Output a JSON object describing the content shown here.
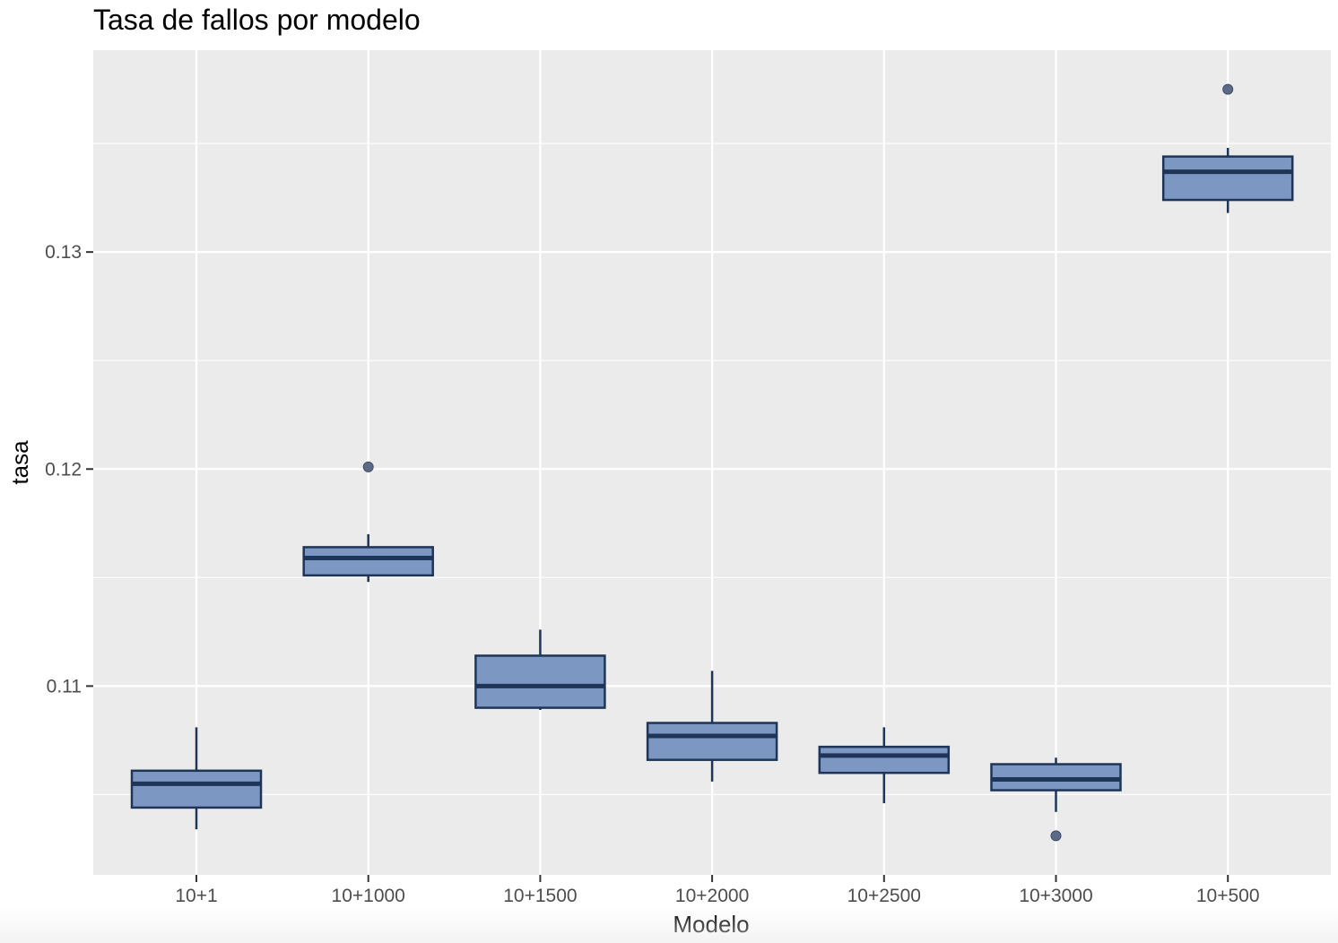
{
  "chart_data": {
    "type": "boxplot",
    "title": "Tasa de fallos por modelo",
    "xlabel": "Modelo",
    "ylabel": "tasa",
    "ylim": [
      0.1013,
      0.1393
    ],
    "y_ticks": [
      0.11,
      0.12,
      0.13
    ],
    "y_tick_labels": [
      "0.11",
      "0.12",
      "0.13"
    ],
    "categories": [
      "10+1",
      "10+1000",
      "10+1500",
      "10+2000",
      "10+2500",
      "10+3000",
      "10+500"
    ],
    "boxes": [
      {
        "category": "10+1",
        "whisker_low": 0.1034,
        "q1": 0.1044,
        "median": 0.1055,
        "q3": 0.1061,
        "whisker_high": 0.1081,
        "outliers": []
      },
      {
        "category": "10+1000",
        "whisker_low": 0.1148,
        "q1": 0.1151,
        "median": 0.1159,
        "q3": 0.1164,
        "whisker_high": 0.117,
        "outliers": [
          0.1201
        ]
      },
      {
        "category": "10+1500",
        "whisker_low": 0.1089,
        "q1": 0.109,
        "median": 0.11,
        "q3": 0.1114,
        "whisker_high": 0.1126,
        "outliers": []
      },
      {
        "category": "10+2000",
        "whisker_low": 0.1056,
        "q1": 0.1066,
        "median": 0.1077,
        "q3": 0.1083,
        "whisker_high": 0.1107,
        "outliers": []
      },
      {
        "category": "10+2500",
        "whisker_low": 0.1046,
        "q1": 0.106,
        "median": 0.1068,
        "q3": 0.1072,
        "whisker_high": 0.1081,
        "outliers": []
      },
      {
        "category": "10+3000",
        "whisker_low": 0.1042,
        "q1": 0.1052,
        "median": 0.1057,
        "q3": 0.1064,
        "whisker_high": 0.1067,
        "outliers": [
          0.1031
        ]
      },
      {
        "category": "10+500",
        "whisker_low": 0.1318,
        "q1": 0.1324,
        "median": 0.1337,
        "q3": 0.1344,
        "whisker_high": 0.1348,
        "outliers": [
          0.1375
        ]
      }
    ],
    "colors": {
      "panel": "#ebebeb",
      "grid": "#ffffff",
      "box_fill": "#7b97c2",
      "box_stroke": "#1f3557",
      "outlier": "#5c6b85"
    },
    "grid": true,
    "legend": "none"
  }
}
